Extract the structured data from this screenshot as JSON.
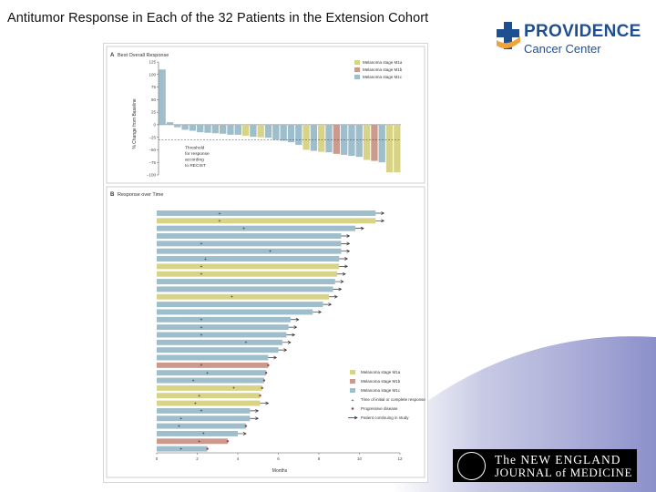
{
  "page": {
    "title": "Antitumor Response in Each of the 32 Patients in the Extension Cohort"
  },
  "logo": {
    "name": "PROVIDENCE",
    "subtitle": "Cancer Center"
  },
  "journal": {
    "line1": "The NEW ENGLAND",
    "line2": "JOURNAL of MEDICINE"
  },
  "colors": {
    "M1a": "#d8d487",
    "M1b": "#cc9a8c",
    "M1c": "#9fbecb",
    "bg_band": "#9a9dcf",
    "logo_blue": "#1f4f93",
    "logo_orange": "#f0a33a"
  },
  "chart_data": [
    {
      "type": "bar",
      "panel_label": "A",
      "title": "Best Overall Response",
      "ylabel": "% Change from Baseline",
      "ylim": [
        -100,
        125
      ],
      "yticks": [
        "125",
        "100",
        "75",
        "50",
        "25",
        "0",
        "−25",
        "−50",
        "−75",
        "−100"
      ],
      "threshold": {
        "value": -30,
        "label": [
          "Threshold",
          "for response",
          "according",
          "to RECIST"
        ]
      },
      "legend": [
        "Melanoma stage M1a",
        "Melanoma stage M1b",
        "Melanoma stage M1c"
      ],
      "legend_position": "top-right",
      "values": [
        110,
        5,
        -5,
        -10,
        -12,
        -15,
        -16,
        -17,
        -18,
        -20,
        -20,
        -22,
        -24,
        -25,
        -26,
        -30,
        -32,
        -35,
        -40,
        -50,
        -52,
        -54,
        -55,
        -58,
        -60,
        -62,
        -64,
        -70,
        -72,
        -75,
        -95,
        -95
      ],
      "stages": [
        "M1c",
        "M1c",
        "M1c",
        "M1c",
        "M1c",
        "M1c",
        "M1c",
        "M1c",
        "M1c",
        "M1c",
        "M1c",
        "M1a",
        "M1c",
        "M1a",
        "M1c",
        "M1c",
        "M1c",
        "M1c",
        "M1c",
        "M1a",
        "M1c",
        "M1a",
        "M1c",
        "M1b",
        "M1c",
        "M1c",
        "M1c",
        "M1a",
        "M1b",
        "M1c",
        "M1a",
        "M1a"
      ]
    },
    {
      "type": "bar",
      "orientation": "horizontal",
      "panel_label": "B",
      "title": "Response over Time",
      "xlabel": "Months",
      "xlim": [
        0,
        12
      ],
      "xticks": [
        "0",
        "2",
        "4",
        "6",
        "8",
        "10",
        "12"
      ],
      "legend": [
        "Melanoma stage M1a",
        "Melanoma stage M1b",
        "Melanoma stage M1c",
        "Time of initial or complete response",
        "Progressive disease",
        "Patient continuing in study"
      ],
      "legend_position": "bottom-right",
      "durations": [
        10.8,
        10.8,
        9.8,
        9.1,
        9.1,
        9.1,
        9.0,
        9.0,
        8.9,
        8.8,
        8.7,
        8.5,
        8.2,
        7.7,
        6.6,
        6.5,
        6.4,
        6.2,
        6.0,
        5.5,
        5.5,
        5.4,
        5.3,
        5.2,
        5.1,
        5.1,
        4.6,
        4.6,
        4.4,
        4.0,
        3.5,
        2.5
      ],
      "response_times": [
        3.1,
        3.1,
        4.3,
        null,
        2.2,
        5.6,
        2.4,
        2.2,
        2.2,
        null,
        null,
        3.7,
        null,
        null,
        2.2,
        2.2,
        2.2,
        4.4,
        null,
        null,
        2.2,
        2.5,
        1.8,
        3.8,
        2.1,
        1.9,
        2.2,
        1.2,
        1.1,
        2.3,
        2.1,
        1.2
      ],
      "continuing": [
        true,
        true,
        true,
        true,
        true,
        true,
        true,
        true,
        true,
        true,
        true,
        true,
        true,
        true,
        true,
        true,
        true,
        true,
        true,
        true,
        false,
        false,
        false,
        false,
        false,
        true,
        true,
        true,
        false,
        true,
        false,
        false
      ],
      "stages": [
        "M1c",
        "M1a",
        "M1c",
        "M1c",
        "M1c",
        "M1c",
        "M1c",
        "M1a",
        "M1a",
        "M1c",
        "M1c",
        "M1a",
        "M1c",
        "M1c",
        "M1c",
        "M1c",
        "M1c",
        "M1c",
        "M1c",
        "M1c",
        "M1b",
        "M1c",
        "M1c",
        "M1a",
        "M1a",
        "M1a",
        "M1c",
        "M1c",
        "M1c",
        "M1c",
        "M1b",
        "M1c"
      ]
    }
  ]
}
